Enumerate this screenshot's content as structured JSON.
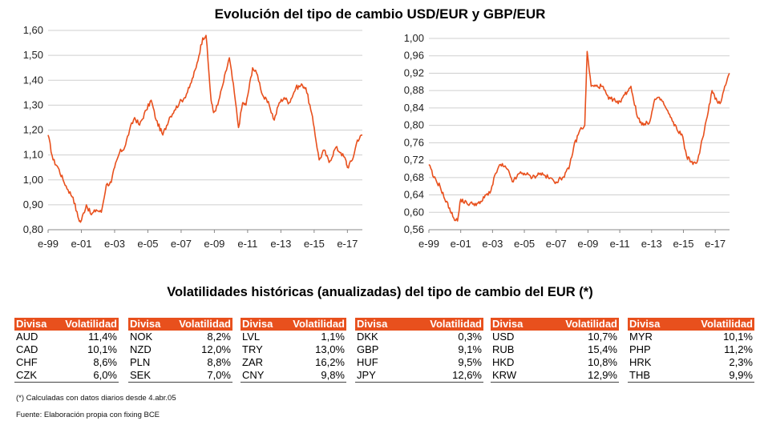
{
  "title": "Evolución del tipo de cambio USD/EUR y GBP/EUR",
  "table_title": "Volatilidades históricas (anualizadas) del tipo de cambio del EUR (*)",
  "footnote": "(*) Calculadas con datos diarios desde 4.abr.05",
  "source": "Fuente: Elaboración propia con fixing BCE",
  "colors": {
    "line": "#e8501d",
    "header_bg": "#e8501d",
    "grid": "#cfcfcf"
  },
  "chart_data": [
    {
      "type": "line",
      "title": "",
      "ylim": [
        0.8,
        1.6
      ],
      "yticks": [
        "0,80",
        "0,90",
        "1,00",
        "1,10",
        "1,20",
        "1,30",
        "1,40",
        "1,50",
        "1,60"
      ],
      "xlim": [
        1999.0,
        2017.9
      ],
      "xticks": [
        {
          "x": 1999,
          "label": "e-99"
        },
        {
          "x": 2001,
          "label": "e-01"
        },
        {
          "x": 2003,
          "label": "e-03"
        },
        {
          "x": 2005,
          "label": "e-05"
        },
        {
          "x": 2007,
          "label": "e-07"
        },
        {
          "x": 2009,
          "label": "e-09"
        },
        {
          "x": 2011,
          "label": "e-11"
        },
        {
          "x": 2013,
          "label": "e-13"
        },
        {
          "x": 2015,
          "label": "e-15"
        },
        {
          "x": 2017,
          "label": "e-17"
        }
      ],
      "grid": true,
      "series": [
        {
          "x": [
            1999.0,
            1999.3,
            1999.6,
            1999.9,
            2000.2,
            2000.5,
            2000.8,
            2000.95,
            2001.3,
            2001.6,
            2001.9,
            2002.2,
            2002.5,
            2002.8,
            2003.0,
            2003.3,
            2003.6,
            2003.9,
            2004.2,
            2004.5,
            2004.9,
            2005.2,
            2005.5,
            2005.9,
            2006.3,
            2006.6,
            2006.9,
            2007.2,
            2007.5,
            2007.9,
            2008.3,
            2008.5,
            2008.8,
            2008.95,
            2009.2,
            2009.5,
            2009.9,
            2010.2,
            2010.45,
            2010.7,
            2010.9,
            2011.3,
            2011.6,
            2011.9,
            2012.3,
            2012.6,
            2012.9,
            2013.2,
            2013.5,
            2013.9,
            2014.3,
            2014.5,
            2014.8,
            2015.0,
            2015.3,
            2015.6,
            2015.9,
            2016.3,
            2016.6,
            2016.9,
            2017.0,
            2017.3,
            2017.6,
            2017.9
          ],
          "y": [
            1.18,
            1.08,
            1.05,
            1.0,
            0.96,
            0.93,
            0.85,
            0.83,
            0.9,
            0.86,
            0.88,
            0.87,
            0.98,
            0.99,
            1.05,
            1.11,
            1.13,
            1.2,
            1.25,
            1.22,
            1.28,
            1.32,
            1.24,
            1.18,
            1.25,
            1.28,
            1.31,
            1.33,
            1.37,
            1.45,
            1.57,
            1.58,
            1.32,
            1.27,
            1.3,
            1.38,
            1.49,
            1.35,
            1.21,
            1.31,
            1.3,
            1.45,
            1.42,
            1.34,
            1.3,
            1.24,
            1.31,
            1.33,
            1.31,
            1.37,
            1.38,
            1.37,
            1.28,
            1.21,
            1.08,
            1.12,
            1.07,
            1.13,
            1.11,
            1.08,
            1.05,
            1.08,
            1.16,
            1.18
          ]
        }
      ]
    },
    {
      "type": "line",
      "title": "",
      "ylim": [
        0.56,
        1.0
      ],
      "yticks": [
        "0,56",
        "0,60",
        "0,64",
        "0,68",
        "0,72",
        "0,76",
        "0,80",
        "0,84",
        "0,88",
        "0,92",
        "0,96",
        "1,00"
      ],
      "xlim": [
        1999.0,
        2017.9
      ],
      "xticks": [
        {
          "x": 1999,
          "label": "e-99"
        },
        {
          "x": 2001,
          "label": "e-01"
        },
        {
          "x": 2003,
          "label": "e-03"
        },
        {
          "x": 2005,
          "label": "e-05"
        },
        {
          "x": 2007,
          "label": "e-07"
        },
        {
          "x": 2009,
          "label": "e-09"
        },
        {
          "x": 2011,
          "label": "e-11"
        },
        {
          "x": 2013,
          "label": "e-13"
        },
        {
          "x": 2015,
          "label": "e-15"
        },
        {
          "x": 2017,
          "label": "e-17"
        }
      ],
      "grid": true,
      "series": [
        {
          "x": [
            1999.0,
            1999.3,
            1999.7,
            2000.0,
            2000.3,
            2000.5,
            2000.8,
            2001.0,
            2001.4,
            2001.8,
            2002.2,
            2002.6,
            2002.9,
            2003.2,
            2003.5,
            2003.9,
            2004.3,
            2004.7,
            2005.0,
            2005.5,
            2006.0,
            2006.5,
            2007.0,
            2007.4,
            2007.8,
            2008.1,
            2008.5,
            2008.8,
            2008.95,
            2009.2,
            2009.5,
            2009.9,
            2010.3,
            2010.6,
            2010.9,
            2011.3,
            2011.7,
            2012.1,
            2012.5,
            2012.9,
            2013.2,
            2013.6,
            2013.9,
            2014.3,
            2014.6,
            2014.9,
            2015.2,
            2015.6,
            2015.9,
            2016.2,
            2016.5,
            2016.8,
            2017.0,
            2017.3,
            2017.6,
            2017.9
          ],
          "y": [
            0.71,
            0.68,
            0.66,
            0.63,
            0.61,
            0.59,
            0.58,
            0.63,
            0.62,
            0.62,
            0.62,
            0.64,
            0.65,
            0.69,
            0.71,
            0.7,
            0.67,
            0.69,
            0.69,
            0.68,
            0.69,
            0.68,
            0.67,
            0.68,
            0.7,
            0.75,
            0.79,
            0.8,
            0.97,
            0.89,
            0.89,
            0.89,
            0.86,
            0.86,
            0.85,
            0.87,
            0.89,
            0.82,
            0.8,
            0.81,
            0.86,
            0.86,
            0.84,
            0.81,
            0.79,
            0.78,
            0.73,
            0.71,
            0.72,
            0.77,
            0.82,
            0.88,
            0.86,
            0.85,
            0.89,
            0.92
          ]
        }
      ]
    }
  ],
  "table": {
    "header": [
      "Divisa",
      "Volatilidad"
    ],
    "groups": [
      [
        [
          "AUD",
          "11,4%"
        ],
        [
          "CAD",
          "10,1%"
        ],
        [
          "CHF",
          "8,6%"
        ],
        [
          "CZK",
          "6,0%"
        ]
      ],
      [
        [
          "NOK",
          "8,2%"
        ],
        [
          "NZD",
          "12,0%"
        ],
        [
          "PLN",
          "8,8%"
        ],
        [
          "SEK",
          "7,0%"
        ]
      ],
      [
        [
          "LVL",
          "1,1%"
        ],
        [
          "TRY",
          "13,0%"
        ],
        [
          "ZAR",
          "16,2%"
        ],
        [
          "CNY",
          "9,8%"
        ]
      ],
      [
        [
          "DKK",
          "0,3%"
        ],
        [
          "GBP",
          "9,1%"
        ],
        [
          "HUF",
          "9,5%"
        ],
        [
          "JPY",
          "12,6%"
        ]
      ],
      [
        [
          "USD",
          "10,7%"
        ],
        [
          "RUB",
          "15,4%"
        ],
        [
          "HKD",
          "10,8%"
        ],
        [
          "KRW",
          "12,9%"
        ]
      ],
      [
        [
          "MYR",
          "10,1%"
        ],
        [
          "PHP",
          "11,2%"
        ],
        [
          "HRK",
          "2,3%"
        ],
        [
          "THB",
          "9,9%"
        ]
      ]
    ]
  }
}
